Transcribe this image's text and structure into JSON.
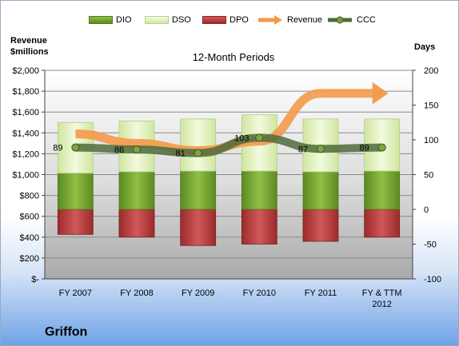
{
  "company": "Griffon",
  "chart_data": {
    "type": "bar",
    "title": "12-Month Periods",
    "y_left_label_line1": "Revenue",
    "y_left_label_line2": "$millions",
    "y_right_label": "Days",
    "categories": [
      [
        "FY 2007"
      ],
      [
        "FY 2008"
      ],
      [
        "FY 2009"
      ],
      [
        "FY 2010"
      ],
      [
        "FY 2011"
      ],
      [
        "FY & TTM",
        "2012"
      ]
    ],
    "y_left_ticks": [
      "$-",
      "$200",
      "$400",
      "$600",
      "$800",
      "$1,000",
      "$1,200",
      "$1,400",
      "$1,600",
      "$1,800",
      "$2,000"
    ],
    "y_left_range": [
      0,
      2000
    ],
    "y_right_ticks": [
      "-100",
      "-50",
      "0",
      "50",
      "100",
      "150",
      "200"
    ],
    "y_right_range": [
      -100,
      200
    ],
    "legend_position": "top",
    "grid": true,
    "series": [
      {
        "name": "DIO",
        "type": "bar",
        "axis": "right",
        "values": [
          52,
          54,
          55,
          55,
          54,
          55
        ],
        "color": "#6e9b2d"
      },
      {
        "name": "DSO",
        "type": "bar",
        "axis": "right",
        "values": [
          73,
          73,
          75,
          81,
          76,
          75
        ],
        "color": "#dff0b8"
      },
      {
        "name": "DPO",
        "type": "bar",
        "axis": "right",
        "values": [
          -36,
          -40,
          -52,
          -50,
          -46,
          -40
        ],
        "color": "#b23a3a"
      },
      {
        "name": "Revenue",
        "type": "line",
        "axis": "left",
        "values": [
          1390,
          1300,
          1230,
          1320,
          1780,
          1780
        ],
        "color": "#f39a4a"
      },
      {
        "name": "CCC",
        "type": "line",
        "axis": "right",
        "values": [
          89,
          86,
          81,
          103,
          87,
          89
        ],
        "color": "#4d6b3b"
      }
    ],
    "ccc_labels": [
      "89",
      "86",
      "81",
      "103",
      "87",
      "89"
    ]
  }
}
